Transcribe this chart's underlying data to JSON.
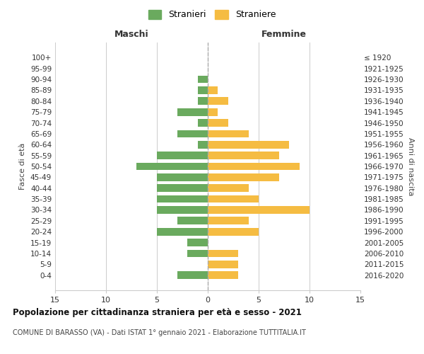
{
  "age_groups": [
    "100+",
    "95-99",
    "90-94",
    "85-89",
    "80-84",
    "75-79",
    "70-74",
    "65-69",
    "60-64",
    "55-59",
    "50-54",
    "45-49",
    "40-44",
    "35-39",
    "30-34",
    "25-29",
    "20-24",
    "15-19",
    "10-14",
    "5-9",
    "0-4"
  ],
  "birth_years": [
    "≤ 1920",
    "1921-1925",
    "1926-1930",
    "1931-1935",
    "1936-1940",
    "1941-1945",
    "1946-1950",
    "1951-1955",
    "1956-1960",
    "1961-1965",
    "1966-1970",
    "1971-1975",
    "1976-1980",
    "1981-1985",
    "1986-1990",
    "1991-1995",
    "1996-2000",
    "2001-2005",
    "2006-2010",
    "2011-2015",
    "2016-2020"
  ],
  "maschi": [
    0,
    0,
    1,
    1,
    1,
    3,
    1,
    3,
    1,
    5,
    7,
    5,
    5,
    5,
    5,
    3,
    5,
    2,
    2,
    0,
    3
  ],
  "femmine": [
    0,
    0,
    0,
    1,
    2,
    1,
    2,
    4,
    8,
    7,
    9,
    7,
    4,
    5,
    10,
    4,
    5,
    0,
    3,
    3,
    3
  ],
  "color_maschi": "#6aaa5e",
  "color_femmine": "#f5bc42",
  "title": "Popolazione per cittadinanza straniera per età e sesso - 2021",
  "subtitle": "COMUNE DI BARASSO (VA) - Dati ISTAT 1° gennaio 2021 - Elaborazione TUTTITALIA.IT",
  "xlabel_left": "Maschi",
  "xlabel_right": "Femmine",
  "ylabel_left": "Fasce di età",
  "ylabel_right": "Anni di nascita",
  "legend_maschi": "Stranieri",
  "legend_femmine": "Straniere",
  "xlim": 15,
  "background_color": "#ffffff",
  "grid_color": "#cccccc"
}
